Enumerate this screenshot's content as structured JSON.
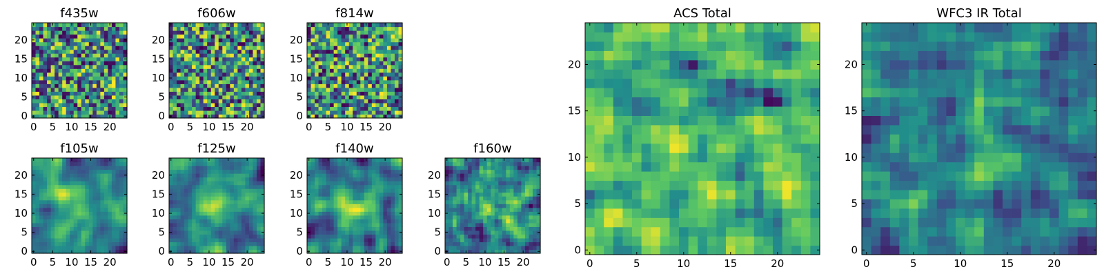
{
  "figure": {
    "background": "#ffffff",
    "colormap": "viridis",
    "colormap_stops": [
      "#440154",
      "#3b528b",
      "#21918c",
      "#5ec962",
      "#fde725"
    ]
  },
  "chart_data": [
    {
      "type": "heatmap",
      "title": "f435w",
      "grid_size": [
        25,
        25
      ],
      "xlim": [
        0,
        24
      ],
      "ylim": [
        0,
        24
      ],
      "xticks": [
        0,
        5,
        10,
        15,
        20
      ],
      "yticks": [
        0,
        5,
        10,
        15,
        20
      ],
      "seed": 11,
      "smooth": 0,
      "distribution": "noise"
    },
    {
      "type": "heatmap",
      "title": "f606w",
      "grid_size": [
        25,
        25
      ],
      "xlim": [
        0,
        24
      ],
      "ylim": [
        0,
        24
      ],
      "xticks": [
        0,
        5,
        10,
        15,
        20
      ],
      "yticks": [
        0,
        5,
        10,
        15,
        20
      ],
      "seed": 23,
      "smooth": 0,
      "distribution": "noise"
    },
    {
      "type": "heatmap",
      "title": "f814w",
      "grid_size": [
        25,
        25
      ],
      "xlim": [
        0,
        24
      ],
      "ylim": [
        0,
        24
      ],
      "xticks": [
        0,
        5,
        10,
        15,
        20
      ],
      "yticks": [
        0,
        5,
        10,
        15,
        20
      ],
      "seed": 37,
      "smooth": 0,
      "distribution": "noise"
    },
    {
      "type": "heatmap",
      "title": "f105w",
      "grid_size": [
        25,
        25
      ],
      "xlim": [
        0,
        24
      ],
      "ylim": [
        0,
        24
      ],
      "xticks": [
        0,
        5,
        10,
        15,
        20
      ],
      "yticks": [
        0,
        5,
        10,
        15,
        20
      ],
      "seed": 41,
      "smooth": 2,
      "distribution": "central-bright"
    },
    {
      "type": "heatmap",
      "title": "f125w",
      "grid_size": [
        25,
        25
      ],
      "xlim": [
        0,
        24
      ],
      "ylim": [
        0,
        24
      ],
      "xticks": [
        0,
        5,
        10,
        15,
        20
      ],
      "yticks": [
        0,
        5,
        10,
        15,
        20
      ],
      "seed": 53,
      "smooth": 2,
      "distribution": "central-bright"
    },
    {
      "type": "heatmap",
      "title": "f140w",
      "grid_size": [
        25,
        25
      ],
      "xlim": [
        0,
        24
      ],
      "ylim": [
        0,
        24
      ],
      "xticks": [
        0,
        5,
        10,
        15,
        20
      ],
      "yticks": [
        0,
        5,
        10,
        15,
        20
      ],
      "seed": 67,
      "smooth": 2,
      "distribution": "central-bright"
    },
    {
      "type": "heatmap",
      "title": "f160w",
      "grid_size": [
        25,
        25
      ],
      "xlim": [
        0,
        24
      ],
      "ylim": [
        0,
        24
      ],
      "xticks": [
        0,
        5,
        10,
        15,
        20
      ],
      "yticks": [
        0,
        5,
        10,
        15,
        20
      ],
      "seed": 79,
      "smooth": 1,
      "distribution": "central-bright"
    },
    {
      "type": "heatmap",
      "title": "ACS Total",
      "grid_size": [
        25,
        25
      ],
      "xlim": [
        0,
        24
      ],
      "ylim": [
        0,
        24
      ],
      "xticks": [
        0,
        5,
        10,
        15,
        20
      ],
      "yticks": [
        0,
        5,
        10,
        15,
        20
      ],
      "seed": 97,
      "smooth": 1,
      "distribution": "mostly-bright"
    },
    {
      "type": "heatmap",
      "title": "WFC3 IR Total",
      "grid_size": [
        25,
        25
      ],
      "xlim": [
        0,
        24
      ],
      "ylim": [
        0,
        24
      ],
      "xticks": [
        0,
        5,
        10,
        15,
        20
      ],
      "yticks": [
        0,
        5,
        10,
        15,
        20
      ],
      "seed": 131,
      "smooth": 1,
      "distribution": "central-column"
    }
  ]
}
